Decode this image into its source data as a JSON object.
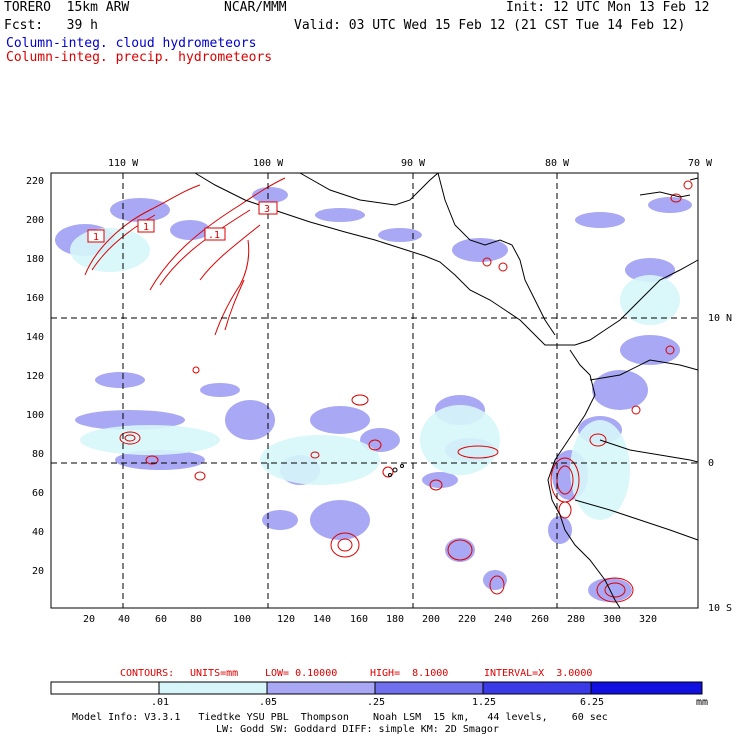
{
  "header": {
    "model": "TORERO  15km ARW",
    "center": "NCAR/MMM",
    "init": "Init: 12 UTC Mon 13 Feb 12",
    "forecast": "Fcst:   39 h",
    "valid": "Valid: 03 UTC Wed 15 Feb 12 (21 CST Tue 14 Feb 12)"
  },
  "legend": {
    "cloud_label": "Column-integ. cloud hydrometeors",
    "cloud_color": "#0000cc",
    "precip_label": "Column-integ. precip. hydrometeors",
    "precip_color": "#dd0000"
  },
  "axes": {
    "top_lon_labels": [
      "110 W",
      "100 W",
      "90 W",
      "80 W",
      "70 W"
    ],
    "right_lat_labels": [
      "10 N",
      "0",
      "10 S"
    ],
    "y_ticks": [
      "220",
      "200",
      "180",
      "160",
      "140",
      "120",
      "100",
      "80",
      "60",
      "40",
      "20"
    ],
    "x_ticks": [
      "20",
      "40",
      "60",
      "80",
      "100",
      "120",
      "140",
      "160",
      "180",
      "200",
      "220",
      "240",
      "260",
      "280",
      "300",
      "320"
    ]
  },
  "contour_labels": [
    "1",
    "1",
    ".1",
    "3"
  ],
  "contours_info": {
    "prefix": "CONTOURS:",
    "units": "UNITS=mm",
    "low": "LOW= 0.10000",
    "high": "HIGH=  8.1000",
    "interval": "INTERVAL=X  3.0000"
  },
  "colorbar": {
    "levels": [
      ".01",
      ".05",
      ".25",
      "1.25",
      "6.25"
    ],
    "unit": "mm",
    "colors": [
      "#ffffff",
      "#d6f6fa",
      "#a8a8f4",
      "#7070ee",
      "#3a3ae6",
      "#1010e0"
    ]
  },
  "footer": {
    "line1": "Model Info: V3.3.1   Tiedtke YSU PBL  Thompson    Noah LSM  15 km,   44 levels,    60 sec",
    "line2": "LW: Godd SW: Goddard DIFF: simple KM: 2D Smagor"
  }
}
